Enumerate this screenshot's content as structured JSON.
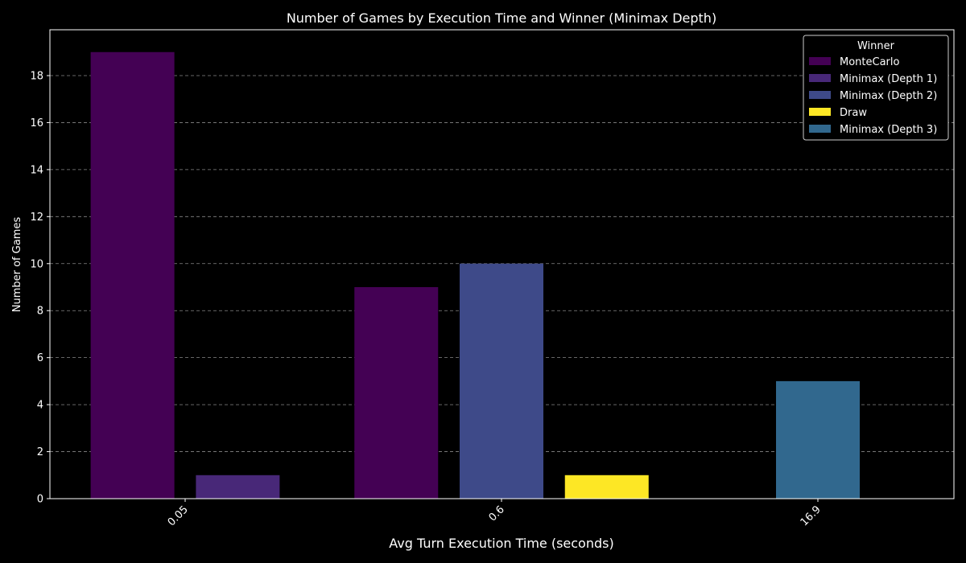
{
  "chart_data": {
    "type": "bar",
    "title": "Number of Games by Execution Time and Winner (Minimax Depth)",
    "xlabel": "Avg Turn Execution Time (seconds)",
    "ylabel": "Number of Games",
    "categories": [
      "0.05",
      "0.6",
      "16.9"
    ],
    "ylim": [
      0,
      19.95
    ],
    "yticks": [
      0,
      2,
      4,
      6,
      8,
      10,
      12,
      14,
      16,
      18
    ],
    "grid": true,
    "legend": {
      "title": "Winner",
      "placement": "top-right"
    },
    "series": [
      {
        "name": "MonteCarlo",
        "color": "#440154",
        "values": [
          19,
          9,
          0
        ]
      },
      {
        "name": "Minimax (Depth 1)",
        "color": "#482878",
        "values": [
          1,
          0,
          0
        ]
      },
      {
        "name": "Minimax (Depth 2)",
        "color": "#3e4a89",
        "values": [
          0,
          10,
          0
        ]
      },
      {
        "name": "Draw",
        "color": "#fde725",
        "values": [
          0,
          1,
          0
        ]
      },
      {
        "name": "Minimax (Depth 3)",
        "color": "#31688e",
        "values": [
          0,
          0,
          5
        ]
      }
    ]
  }
}
